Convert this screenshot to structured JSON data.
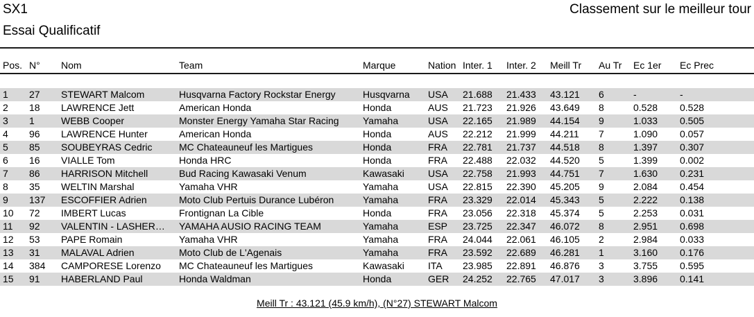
{
  "header": {
    "category": "SX1",
    "session": "Essai Qualificatif",
    "classification_label": "Classement sur le meilleur tour"
  },
  "table": {
    "columns": [
      {
        "key": "pos",
        "label": "Pos."
      },
      {
        "key": "num",
        "label": "N°"
      },
      {
        "key": "name",
        "label": "Nom"
      },
      {
        "key": "team",
        "label": "Team"
      },
      {
        "key": "brand",
        "label": "Marque"
      },
      {
        "key": "nation",
        "label": "Nation"
      },
      {
        "key": "inter1",
        "label": "Inter. 1"
      },
      {
        "key": "inter2",
        "label": "Inter. 2"
      },
      {
        "key": "best_lap",
        "label": "Meill Tr"
      },
      {
        "key": "at_lap",
        "label": "Au Tr"
      },
      {
        "key": "gap_first",
        "label": "Ec 1er"
      },
      {
        "key": "gap_prev",
        "label": "Ec Prec"
      }
    ],
    "rows": [
      {
        "pos": "1",
        "num": "27",
        "name": "STEWART Malcom",
        "team": "Husqvarna Factory Rockstar Energy",
        "brand": "Husqvarna",
        "nation": "USA",
        "inter1": "21.688",
        "inter2": "21.433",
        "best_lap": "43.121",
        "at_lap": "6",
        "gap_first": "-",
        "gap_prev": "-"
      },
      {
        "pos": "2",
        "num": "18",
        "name": "LAWRENCE Jett",
        "team": "American Honda",
        "brand": "Honda",
        "nation": "AUS",
        "inter1": "21.723",
        "inter2": "21.926",
        "best_lap": "43.649",
        "at_lap": "8",
        "gap_first": "0.528",
        "gap_prev": "0.528"
      },
      {
        "pos": "3",
        "num": "1",
        "name": "WEBB Cooper",
        "team": "Monster Energy Yamaha Star Racing",
        "brand": "Yamaha",
        "nation": "USA",
        "inter1": "22.165",
        "inter2": "21.989",
        "best_lap": "44.154",
        "at_lap": "9",
        "gap_first": "1.033",
        "gap_prev": "0.505"
      },
      {
        "pos": "4",
        "num": "96",
        "name": "LAWRENCE Hunter",
        "team": "American Honda",
        "brand": "Honda",
        "nation": "AUS",
        "inter1": "22.212",
        "inter2": "21.999",
        "best_lap": "44.211",
        "at_lap": "7",
        "gap_first": "1.090",
        "gap_prev": "0.057"
      },
      {
        "pos": "5",
        "num": "85",
        "name": "SOUBEYRAS Cedric",
        "team": "MC Chateauneuf les Martigues",
        "brand": "Honda",
        "nation": "FRA",
        "inter1": "22.781",
        "inter2": "21.737",
        "best_lap": "44.518",
        "at_lap": "8",
        "gap_first": "1.397",
        "gap_prev": "0.307"
      },
      {
        "pos": "6",
        "num": "16",
        "name": "VIALLE Tom",
        "team": "Honda HRC",
        "brand": "Honda",
        "nation": "FRA",
        "inter1": "22.488",
        "inter2": "22.032",
        "best_lap": "44.520",
        "at_lap": "5",
        "gap_first": "1.399",
        "gap_prev": "0.002"
      },
      {
        "pos": "7",
        "num": "86",
        "name": "HARRISON Mitchell",
        "team": "Bud Racing Kawasaki Venum",
        "brand": "Kawasaki",
        "nation": "USA",
        "inter1": "22.758",
        "inter2": "21.993",
        "best_lap": "44.751",
        "at_lap": "7",
        "gap_first": "1.630",
        "gap_prev": "0.231"
      },
      {
        "pos": "8",
        "num": "35",
        "name": "WELTIN Marshal",
        "team": "Yamaha VHR",
        "brand": "Yamaha",
        "nation": "USA",
        "inter1": "22.815",
        "inter2": "22.390",
        "best_lap": "45.205",
        "at_lap": "9",
        "gap_first": "2.084",
        "gap_prev": "0.454"
      },
      {
        "pos": "9",
        "num": "137",
        "name": "ESCOFFIER Adrien",
        "team": "Moto Club Pertuis Durance Lubéron",
        "brand": "Yamaha",
        "nation": "FRA",
        "inter1": "23.329",
        "inter2": "22.014",
        "best_lap": "45.343",
        "at_lap": "5",
        "gap_first": "2.222",
        "gap_prev": "0.138"
      },
      {
        "pos": "10",
        "num": "72",
        "name": "IMBERT Lucas",
        "team": "Frontignan La Cible",
        "brand": "Honda",
        "nation": "FRA",
        "inter1": "23.056",
        "inter2": "22.318",
        "best_lap": "45.374",
        "at_lap": "5",
        "gap_first": "2.253",
        "gap_prev": "0.031"
      },
      {
        "pos": "11",
        "num": "92",
        "name": "VALENTIN - LASHER…",
        "team": "YAMAHA AUSIO RACING TEAM",
        "brand": "Yamaha",
        "nation": "ESP",
        "inter1": "23.725",
        "inter2": "22.347",
        "best_lap": "46.072",
        "at_lap": "8",
        "gap_first": "2.951",
        "gap_prev": "0.698"
      },
      {
        "pos": "12",
        "num": "53",
        "name": "PAPE Romain",
        "team": "Yamaha VHR",
        "brand": "Yamaha",
        "nation": "FRA",
        "inter1": "24.044",
        "inter2": "22.061",
        "best_lap": "46.105",
        "at_lap": "2",
        "gap_first": "2.984",
        "gap_prev": "0.033"
      },
      {
        "pos": "13",
        "num": "31",
        "name": "MALAVAL Adrien",
        "team": "Moto Club de L'Agenais",
        "brand": "Yamaha",
        "nation": "FRA",
        "inter1": "23.592",
        "inter2": "22.689",
        "best_lap": "46.281",
        "at_lap": "1",
        "gap_first": "3.160",
        "gap_prev": "0.176"
      },
      {
        "pos": "14",
        "num": "384",
        "name": "CAMPORESE Lorenzo",
        "team": "MC Chateauneuf les Martigues",
        "brand": "Kawasaki",
        "nation": "ITA",
        "inter1": "23.985",
        "inter2": "22.891",
        "best_lap": "46.876",
        "at_lap": "3",
        "gap_first": "3.755",
        "gap_prev": "0.595"
      },
      {
        "pos": "15",
        "num": "91",
        "name": "HABERLAND Paul",
        "team": "Honda Waldman",
        "brand": "Honda",
        "nation": "GER",
        "inter1": "24.252",
        "inter2": "22.765",
        "best_lap": "47.017",
        "at_lap": "3",
        "gap_first": "3.896",
        "gap_prev": "0.141"
      }
    ]
  },
  "footer": {
    "best_lap_summary": "Meill Tr : 43.121 (45.9 km/h), (N°27) STEWART Malcom"
  },
  "colors": {
    "row_stripe": "#d9d9d9",
    "text": "#000000",
    "rule": "#1a1a1a"
  }
}
